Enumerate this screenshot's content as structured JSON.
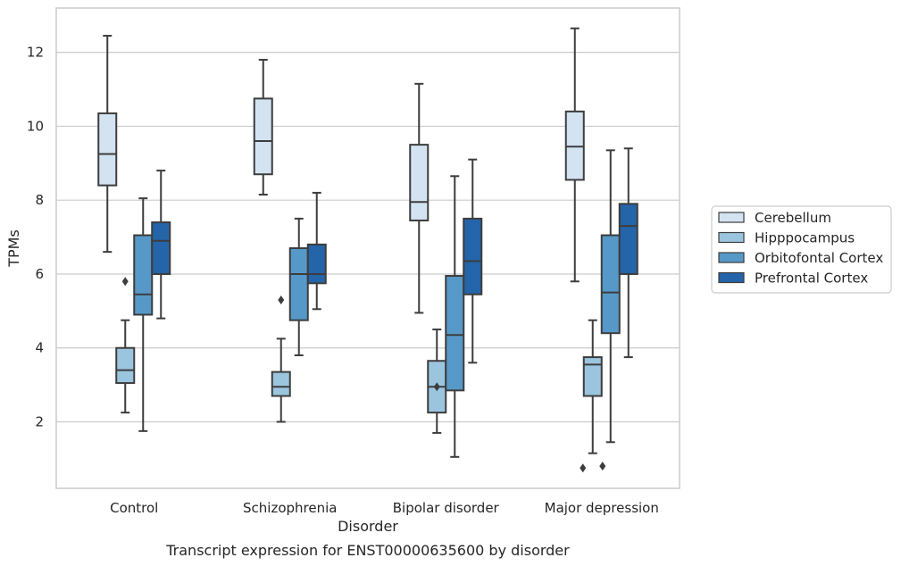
{
  "chart_data": {
    "type": "box",
    "caption": "Transcript expression for ENST00000635600 by disorder",
    "xlabel": "Disorder",
    "ylabel": "TPMs",
    "ylim": [
      0.2,
      13.2
    ],
    "yticks": [
      2,
      4,
      6,
      8,
      10,
      12
    ],
    "grid": "horizontal",
    "legend_position": "right",
    "categories": [
      "Control",
      "Schizophrenia",
      "Bipolar disorder",
      "Major depression"
    ],
    "series": [
      {
        "name": "Cerebellum",
        "color": "#d4e3f2",
        "boxes": [
          {
            "whislo": 6.6,
            "q1": 8.4,
            "med": 9.25,
            "q3": 10.35,
            "whishi": 12.45,
            "fliers": []
          },
          {
            "whislo": 8.15,
            "q1": 8.7,
            "med": 9.6,
            "q3": 10.75,
            "whishi": 11.8,
            "fliers": []
          },
          {
            "whislo": 4.95,
            "q1": 7.45,
            "med": 7.95,
            "q3": 9.5,
            "whishi": 11.15,
            "fliers": []
          },
          {
            "whislo": 5.8,
            "q1": 8.55,
            "med": 9.45,
            "q3": 10.4,
            "whishi": 12.65,
            "fliers": []
          }
        ]
      },
      {
        "name": "Hipppocampus",
        "color": "#9bc5df",
        "boxes": [
          {
            "whislo": 2.25,
            "q1": 3.05,
            "med": 3.4,
            "q3": 4.0,
            "whishi": 4.75,
            "fliers": [
              5.8
            ]
          },
          {
            "whislo": 2.0,
            "q1": 2.7,
            "med": 2.95,
            "q3": 3.35,
            "whishi": 4.25,
            "fliers": [
              5.3
            ]
          },
          {
            "whislo": 1.7,
            "q1": 2.25,
            "med": 2.95,
            "q3": 3.65,
            "whishi": 4.5,
            "fliers": [
              2.95
            ]
          },
          {
            "whislo": 1.15,
            "q1": 2.7,
            "med": 3.55,
            "q3": 3.75,
            "whishi": 4.75,
            "fliers": [
              0.75,
              0.8
            ]
          }
        ]
      },
      {
        "name": "Orbitofontal Cortex",
        "color": "#5699c8",
        "boxes": [
          {
            "whislo": 1.75,
            "q1": 4.9,
            "med": 5.45,
            "q3": 7.05,
            "whishi": 8.05,
            "fliers": []
          },
          {
            "whislo": 3.8,
            "q1": 4.75,
            "med": 6.0,
            "q3": 6.7,
            "whishi": 7.5,
            "fliers": []
          },
          {
            "whislo": 1.05,
            "q1": 2.85,
            "med": 4.35,
            "q3": 5.95,
            "whishi": 8.65,
            "fliers": []
          },
          {
            "whislo": 1.45,
            "q1": 4.4,
            "med": 5.5,
            "q3": 7.05,
            "whishi": 9.35,
            "fliers": []
          }
        ]
      },
      {
        "name": "Prefrontal Cortex",
        "color": "#2464a8",
        "boxes": [
          {
            "whislo": 4.8,
            "q1": 6.0,
            "med": 6.9,
            "q3": 7.4,
            "whishi": 8.8,
            "fliers": []
          },
          {
            "whislo": 5.05,
            "q1": 5.75,
            "med": 6.0,
            "q3": 6.8,
            "whishi": 8.2,
            "fliers": []
          },
          {
            "whislo": 3.6,
            "q1": 5.45,
            "med": 6.35,
            "q3": 7.5,
            "whishi": 9.1,
            "fliers": []
          },
          {
            "whislo": 3.75,
            "q1": 6.0,
            "med": 7.3,
            "q3": 7.9,
            "whishi": 9.4,
            "fliers": []
          }
        ]
      }
    ]
  }
}
